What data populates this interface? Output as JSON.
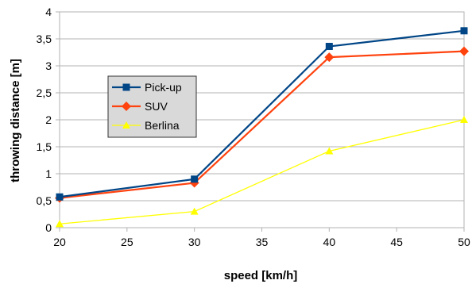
{
  "chart_data": {
    "type": "line",
    "xlabel": "speed [km/h]",
    "ylabel": "throwing distance [m]",
    "xlim": [
      20,
      50
    ],
    "ylim": [
      0,
      4
    ],
    "x_ticks": [
      "20",
      "25",
      "30",
      "35",
      "40",
      "45",
      "50"
    ],
    "y_ticks": [
      "0",
      "0,5",
      "1",
      "1,5",
      "2",
      "2,5",
      "3",
      "3,5",
      "4"
    ],
    "grid": "horizontal",
    "legend_position": "left",
    "x": [
      20,
      30,
      40,
      50
    ],
    "series": [
      {
        "name": "Pick-up",
        "values": [
          0.57,
          0.9,
          3.36,
          3.65
        ],
        "color": "#004586",
        "marker": "square"
      },
      {
        "name": "SUV",
        "values": [
          0.55,
          0.83,
          3.16,
          3.27
        ],
        "color": "#ff420e",
        "marker": "diamond"
      },
      {
        "name": "Berlina",
        "values": [
          0.07,
          0.3,
          1.42,
          2.0
        ],
        "color": "#ffff00",
        "marker": "triangle"
      }
    ]
  }
}
